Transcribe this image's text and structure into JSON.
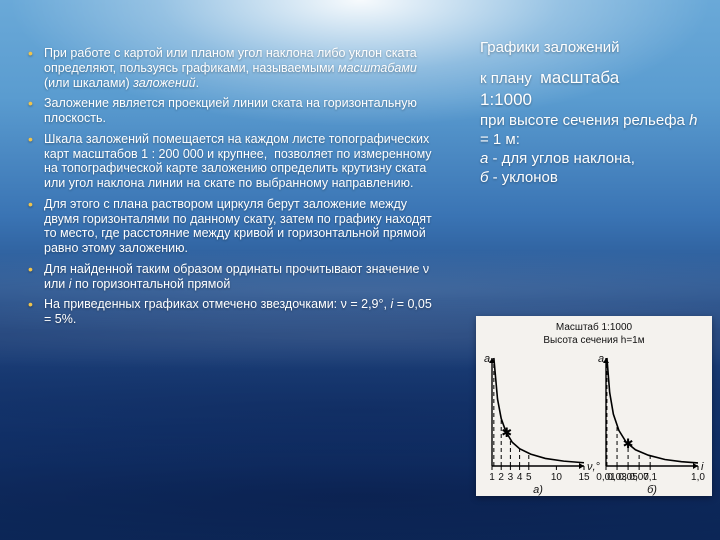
{
  "bullets": [
    "При работе с картой или планом угол наклона либо уклон ската определяют, пользуясь графиками, называемыми <span class=\"em\">масштабами</span> (или шкалами) <span class=\"em\">заложений</span>.",
    "Заложение является проекцией линии ската на горизонтальную плоскость.",
    "Шкала заложений помещается на каждом листе топографических карт масштабов 1 : 200 000 и крупнее,&nbsp;&nbsp;позволяет по измеренному на топографической карте заложению определить крутизну ската или угол наклона линии на скате по выбранному направлению.",
    "Для этого с плана раствором циркуля берут заложение между двумя горизонталями по данному скату, затем по графику находят то место, где расстояние между кривой и горизонтальной прямой равно этому заложению.",
    "Для найденной таким образом ординаты прочитывают значение ν или <span class=\"em\">i</span> по горизонтальной прямой",
    "На приведенных графиках отмечено звездочками: ν = 2,9°, <span class=\"em\">i</span> = 0,05 = 5%."
  ],
  "right": {
    "title": "Графики заложений",
    "line_to_plan": "к плану",
    "scale_word": "масштаба",
    "ratio": "1:1000",
    "height_line": "при высоте сечения рельефа <span class=\"em\">h</span> = 1 м:",
    "a_line": "<span class=\"em\">а</span> - для углов наклона,",
    "b_line": "<span class=\"em\">б</span> - уклонов"
  },
  "chart": {
    "caption_line1": "Масштаб 1:1000",
    "caption_line2": "Высота сечения h=1м",
    "panel_bg": "#f4f2ee",
    "axis_color": "#000000",
    "curve_color": "#000000",
    "drop_dash": "4 3",
    "left": {
      "label_y": "a",
      "label_x_end": "ν,°",
      "under_label": "а)",
      "ticks": [
        1,
        2,
        3,
        4,
        5,
        10,
        15
      ],
      "tick_positions": [
        0,
        0.1,
        0.2,
        0.3,
        0.4,
        0.7,
        1.0
      ],
      "curve": [
        [
          0.02,
          1.0
        ],
        [
          0.06,
          0.62
        ],
        [
          0.1,
          0.44
        ],
        [
          0.15,
          0.32
        ],
        [
          0.22,
          0.22
        ],
        [
          0.3,
          0.16
        ],
        [
          0.42,
          0.11
        ],
        [
          0.58,
          0.07
        ],
        [
          0.78,
          0.045
        ],
        [
          1.0,
          0.03
        ]
      ],
      "star_u": 0.16,
      "drops_u": [
        0.02,
        0.1,
        0.2,
        0.3,
        0.4
      ]
    },
    "right": {
      "label_y": "a",
      "label_x_end": "i",
      "under_label": "б)",
      "ticks": [
        "0,01",
        "0,03",
        "0,05",
        "0,07",
        "0,1",
        "1,0"
      ],
      "tick_positions": [
        0.0,
        0.12,
        0.24,
        0.36,
        0.48,
        1.0
      ],
      "curve": [
        [
          0.01,
          1.0
        ],
        [
          0.04,
          0.68
        ],
        [
          0.08,
          0.48
        ],
        [
          0.14,
          0.33
        ],
        [
          0.22,
          0.22
        ],
        [
          0.32,
          0.15
        ],
        [
          0.46,
          0.1
        ],
        [
          0.64,
          0.06
        ],
        [
          0.82,
          0.04
        ],
        [
          1.0,
          0.028
        ]
      ],
      "star_u": 0.24,
      "drops_u": [
        0.01,
        0.12,
        0.24,
        0.36,
        0.48
      ]
    }
  }
}
